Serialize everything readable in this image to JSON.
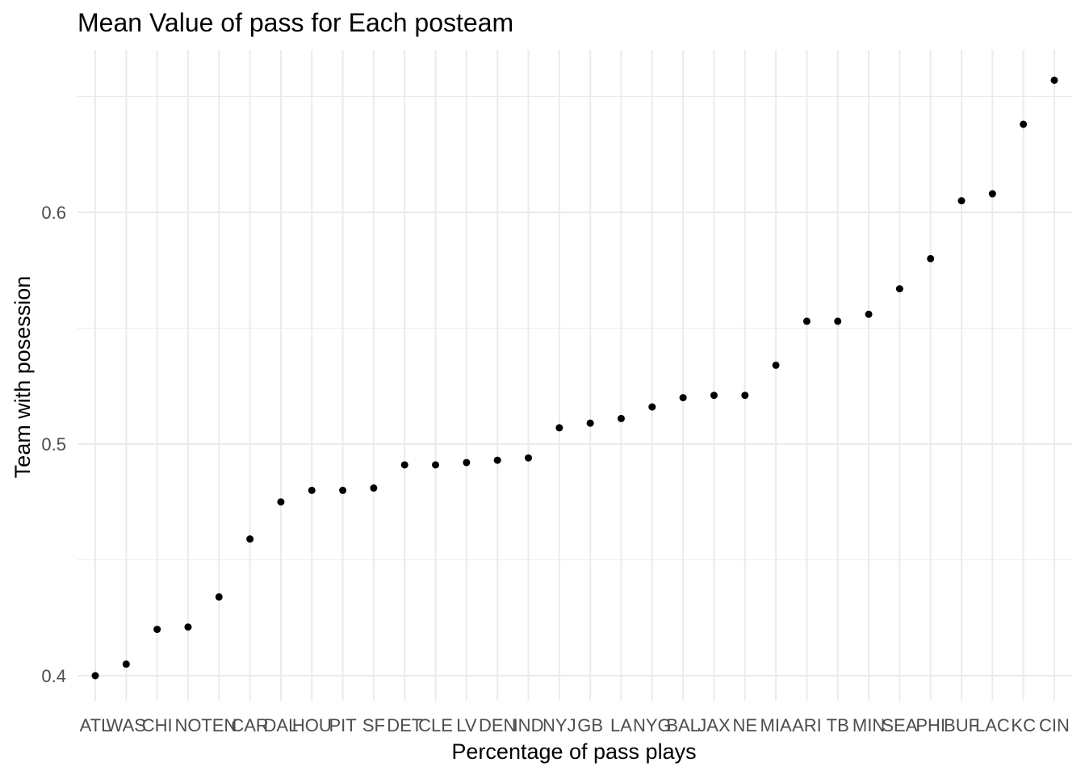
{
  "chart_data": {
    "type": "scatter",
    "title": "Mean Value of pass for Each posteam",
    "xlabel": "Percentage of pass plays",
    "ylabel": "Team with posession",
    "ylim": [
      0.39,
      0.665
    ],
    "yticks": [
      "0.4",
      "0.5",
      "0.6"
    ],
    "ytick_values": [
      0.4,
      0.5,
      0.6
    ],
    "grid": true,
    "categories": [
      "ATL",
      "WAS",
      "CHI",
      "NO",
      "TEN",
      "CAR",
      "DAL",
      "HOU",
      "PIT",
      "SF",
      "DET",
      "CLE",
      "LV",
      "DEN",
      "IND",
      "NYJ",
      "GB",
      "LA",
      "NYG",
      "BAL",
      "JAX",
      "NE",
      "MIA",
      "ARI",
      "TB",
      "MIN",
      "SEA",
      "PHI",
      "BUF",
      "LAC",
      "KC",
      "CIN"
    ],
    "values": [
      0.4,
      0.405,
      0.42,
      0.421,
      0.434,
      0.459,
      0.475,
      0.48,
      0.48,
      0.481,
      0.491,
      0.491,
      0.492,
      0.493,
      0.494,
      0.507,
      0.509,
      0.511,
      0.516,
      0.52,
      0.521,
      0.521,
      0.534,
      0.553,
      0.553,
      0.556,
      0.567,
      0.58,
      0.605,
      0.608,
      0.638,
      0.657
    ],
    "point_color": "#000000",
    "grid_color": "#ebebeb"
  }
}
